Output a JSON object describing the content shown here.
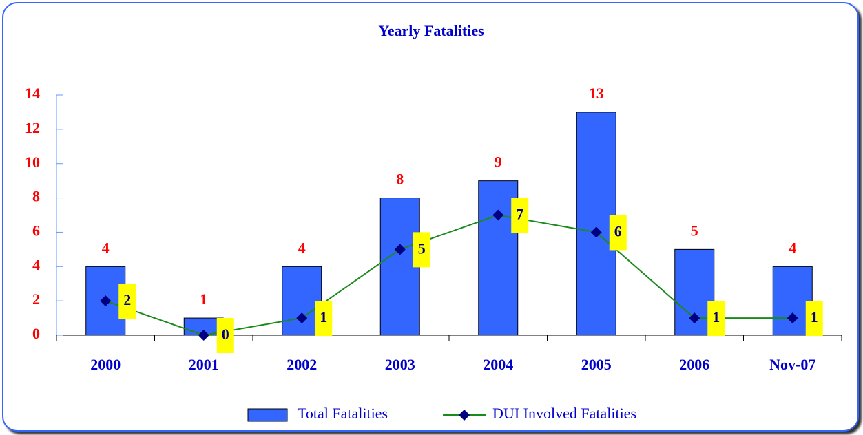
{
  "chart_data": {
    "type": "bar",
    "title": "Yearly Fatalities",
    "categories": [
      "2000",
      "2001",
      "2002",
      "2003",
      "2004",
      "2005",
      "2006",
      "Nov-07"
    ],
    "series": [
      {
        "name": "Total Fatalities",
        "type": "bar",
        "color": "#3366ff",
        "values": [
          4,
          1,
          4,
          8,
          9,
          13,
          5,
          4
        ]
      },
      {
        "name": "DUI Involved Fatalities",
        "type": "line",
        "color": "#1a8a1a",
        "marker_color": "#000080",
        "values": [
          2,
          0,
          1,
          5,
          7,
          6,
          1,
          1
        ]
      }
    ],
    "ylim": [
      0,
      14
    ],
    "yticks": [
      0,
      2,
      4,
      6,
      8,
      10,
      12,
      14
    ],
    "legend": "bottom"
  }
}
